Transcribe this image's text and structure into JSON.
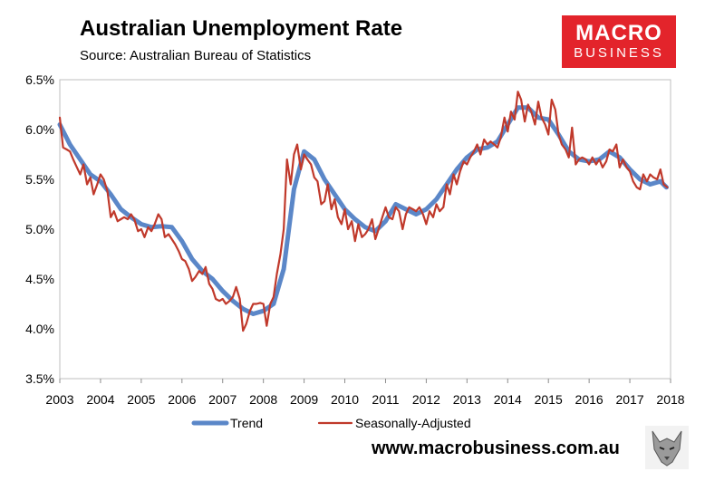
{
  "header": {
    "title": "Australian Unemployment Rate",
    "subtitle": "Source: Australian Bureau of Statistics"
  },
  "logo": {
    "line1": "MACRO",
    "line2": "BUSINESS",
    "color": "#e3242b"
  },
  "footer": {
    "website": "www.macrobusiness.com.au"
  },
  "chart_data": {
    "type": "line",
    "title": "Australian Unemployment Rate",
    "subtitle": "Source: Australian Bureau of Statistics",
    "xlabel": "",
    "ylabel": "",
    "xlim": [
      2003,
      2018
    ],
    "ylim": [
      3.5,
      6.5
    ],
    "x_ticks": [
      "2003",
      "2004",
      "2005",
      "2006",
      "2007",
      "2008",
      "2009",
      "2010",
      "2011",
      "2012",
      "2013",
      "2014",
      "2015",
      "2016",
      "2017",
      "2018"
    ],
    "y_ticks": [
      "3.5%",
      "4.0%",
      "4.5%",
      "5.0%",
      "5.5%",
      "6.0%",
      "6.5%"
    ],
    "grid": false,
    "legend": "bottom",
    "series": [
      {
        "name": "Trend",
        "color": "#5b87c8",
        "points": [
          [
            2003.0,
            6.05
          ],
          [
            2003.25,
            5.85
          ],
          [
            2003.5,
            5.7
          ],
          [
            2003.75,
            5.55
          ],
          [
            2004.0,
            5.48
          ],
          [
            2004.25,
            5.35
          ],
          [
            2004.5,
            5.2
          ],
          [
            2004.75,
            5.12
          ],
          [
            2005.0,
            5.05
          ],
          [
            2005.25,
            5.02
          ],
          [
            2005.5,
            5.03
          ],
          [
            2005.75,
            5.02
          ],
          [
            2006.0,
            4.88
          ],
          [
            2006.25,
            4.7
          ],
          [
            2006.5,
            4.58
          ],
          [
            2006.75,
            4.5
          ],
          [
            2007.0,
            4.38
          ],
          [
            2007.25,
            4.28
          ],
          [
            2007.5,
            4.2
          ],
          [
            2007.75,
            4.15
          ],
          [
            2008.0,
            4.18
          ],
          [
            2008.25,
            4.25
          ],
          [
            2008.5,
            4.6
          ],
          [
            2008.75,
            5.4
          ],
          [
            2009.0,
            5.78
          ],
          [
            2009.25,
            5.7
          ],
          [
            2009.5,
            5.5
          ],
          [
            2009.75,
            5.35
          ],
          [
            2010.0,
            5.2
          ],
          [
            2010.25,
            5.1
          ],
          [
            2010.5,
            5.02
          ],
          [
            2010.75,
            4.98
          ],
          [
            2011.0,
            5.08
          ],
          [
            2011.25,
            5.25
          ],
          [
            2011.5,
            5.2
          ],
          [
            2011.75,
            5.15
          ],
          [
            2012.0,
            5.2
          ],
          [
            2012.25,
            5.3
          ],
          [
            2012.5,
            5.45
          ],
          [
            2012.75,
            5.6
          ],
          [
            2013.0,
            5.72
          ],
          [
            2013.25,
            5.8
          ],
          [
            2013.5,
            5.82
          ],
          [
            2013.75,
            5.88
          ],
          [
            2014.0,
            6.05
          ],
          [
            2014.25,
            6.22
          ],
          [
            2014.5,
            6.22
          ],
          [
            2014.75,
            6.12
          ],
          [
            2015.0,
            6.1
          ],
          [
            2015.25,
            5.95
          ],
          [
            2015.5,
            5.78
          ],
          [
            2015.75,
            5.7
          ],
          [
            2016.0,
            5.68
          ],
          [
            2016.25,
            5.7
          ],
          [
            2016.5,
            5.78
          ],
          [
            2016.75,
            5.72
          ],
          [
            2017.0,
            5.6
          ],
          [
            2017.25,
            5.5
          ],
          [
            2017.5,
            5.45
          ],
          [
            2017.75,
            5.48
          ],
          [
            2017.9,
            5.42
          ]
        ]
      },
      {
        "name": "Seasonally-Adjusted",
        "color": "#c0392b",
        "points": [
          [
            2003.0,
            6.12
          ],
          [
            2003.08,
            5.82
          ],
          [
            2003.17,
            5.8
          ],
          [
            2003.25,
            5.78
          ],
          [
            2003.33,
            5.7
          ],
          [
            2003.42,
            5.62
          ],
          [
            2003.5,
            5.55
          ],
          [
            2003.58,
            5.65
          ],
          [
            2003.67,
            5.45
          ],
          [
            2003.75,
            5.52
          ],
          [
            2003.83,
            5.35
          ],
          [
            2003.92,
            5.45
          ],
          [
            2004.0,
            5.55
          ],
          [
            2004.08,
            5.5
          ],
          [
            2004.17,
            5.38
          ],
          [
            2004.25,
            5.12
          ],
          [
            2004.33,
            5.18
          ],
          [
            2004.42,
            5.08
          ],
          [
            2004.5,
            5.1
          ],
          [
            2004.58,
            5.12
          ],
          [
            2004.67,
            5.1
          ],
          [
            2004.75,
            5.15
          ],
          [
            2004.83,
            5.1
          ],
          [
            2004.92,
            4.98
          ],
          [
            2005.0,
            5.0
          ],
          [
            2005.08,
            4.92
          ],
          [
            2005.17,
            5.02
          ],
          [
            2005.25,
            4.98
          ],
          [
            2005.33,
            5.05
          ],
          [
            2005.42,
            5.15
          ],
          [
            2005.5,
            5.1
          ],
          [
            2005.58,
            4.92
          ],
          [
            2005.67,
            4.95
          ],
          [
            2005.75,
            4.9
          ],
          [
            2005.83,
            4.85
          ],
          [
            2005.92,
            4.78
          ],
          [
            2006.0,
            4.7
          ],
          [
            2006.08,
            4.68
          ],
          [
            2006.17,
            4.6
          ],
          [
            2006.25,
            4.48
          ],
          [
            2006.33,
            4.52
          ],
          [
            2006.42,
            4.58
          ],
          [
            2006.5,
            4.55
          ],
          [
            2006.58,
            4.62
          ],
          [
            2006.67,
            4.45
          ],
          [
            2006.75,
            4.4
          ],
          [
            2006.83,
            4.3
          ],
          [
            2006.92,
            4.28
          ],
          [
            2007.0,
            4.3
          ],
          [
            2007.08,
            4.25
          ],
          [
            2007.17,
            4.28
          ],
          [
            2007.25,
            4.32
          ],
          [
            2007.33,
            4.42
          ],
          [
            2007.42,
            4.3
          ],
          [
            2007.5,
            3.98
          ],
          [
            2007.58,
            4.05
          ],
          [
            2007.67,
            4.18
          ],
          [
            2007.75,
            4.25
          ],
          [
            2007.83,
            4.25
          ],
          [
            2007.92,
            4.26
          ],
          [
            2008.0,
            4.25
          ],
          [
            2008.08,
            4.03
          ],
          [
            2008.17,
            4.25
          ],
          [
            2008.25,
            4.32
          ],
          [
            2008.33,
            4.55
          ],
          [
            2008.42,
            4.75
          ],
          [
            2008.5,
            5.0
          ],
          [
            2008.58,
            5.7
          ],
          [
            2008.67,
            5.45
          ],
          [
            2008.75,
            5.75
          ],
          [
            2008.83,
            5.85
          ],
          [
            2008.92,
            5.6
          ],
          [
            2009.0,
            5.75
          ],
          [
            2009.08,
            5.7
          ],
          [
            2009.17,
            5.65
          ],
          [
            2009.25,
            5.52
          ],
          [
            2009.33,
            5.48
          ],
          [
            2009.42,
            5.25
          ],
          [
            2009.5,
            5.28
          ],
          [
            2009.58,
            5.45
          ],
          [
            2009.67,
            5.2
          ],
          [
            2009.75,
            5.3
          ],
          [
            2009.83,
            5.12
          ],
          [
            2009.92,
            5.05
          ],
          [
            2010.0,
            5.2
          ],
          [
            2010.08,
            5.0
          ],
          [
            2010.17,
            5.08
          ],
          [
            2010.25,
            4.88
          ],
          [
            2010.33,
            5.05
          ],
          [
            2010.42,
            4.92
          ],
          [
            2010.5,
            4.95
          ],
          [
            2010.58,
            5.0
          ],
          [
            2010.67,
            5.1
          ],
          [
            2010.75,
            4.9
          ],
          [
            2010.83,
            5.0
          ],
          [
            2010.92,
            5.12
          ],
          [
            2011.0,
            5.22
          ],
          [
            2011.08,
            5.12
          ],
          [
            2011.17,
            5.1
          ],
          [
            2011.25,
            5.22
          ],
          [
            2011.33,
            5.18
          ],
          [
            2011.42,
            5.0
          ],
          [
            2011.5,
            5.15
          ],
          [
            2011.58,
            5.22
          ],
          [
            2011.67,
            5.2
          ],
          [
            2011.75,
            5.18
          ],
          [
            2011.83,
            5.22
          ],
          [
            2011.92,
            5.15
          ],
          [
            2012.0,
            5.05
          ],
          [
            2012.08,
            5.18
          ],
          [
            2012.17,
            5.12
          ],
          [
            2012.25,
            5.25
          ],
          [
            2012.33,
            5.18
          ],
          [
            2012.42,
            5.22
          ],
          [
            2012.5,
            5.45
          ],
          [
            2012.58,
            5.35
          ],
          [
            2012.67,
            5.55
          ],
          [
            2012.75,
            5.45
          ],
          [
            2012.83,
            5.58
          ],
          [
            2012.92,
            5.68
          ],
          [
            2013.0,
            5.65
          ],
          [
            2013.08,
            5.72
          ],
          [
            2013.17,
            5.78
          ],
          [
            2013.25,
            5.85
          ],
          [
            2013.33,
            5.75
          ],
          [
            2013.42,
            5.9
          ],
          [
            2013.5,
            5.85
          ],
          [
            2013.58,
            5.88
          ],
          [
            2013.67,
            5.85
          ],
          [
            2013.75,
            5.82
          ],
          [
            2013.83,
            5.92
          ],
          [
            2013.92,
            6.12
          ],
          [
            2014.0,
            5.98
          ],
          [
            2014.08,
            6.18
          ],
          [
            2014.17,
            6.1
          ],
          [
            2014.25,
            6.38
          ],
          [
            2014.33,
            6.3
          ],
          [
            2014.42,
            6.08
          ],
          [
            2014.5,
            6.25
          ],
          [
            2014.58,
            6.18
          ],
          [
            2014.67,
            6.05
          ],
          [
            2014.75,
            6.28
          ],
          [
            2014.83,
            6.12
          ],
          [
            2014.92,
            6.05
          ],
          [
            2015.0,
            5.95
          ],
          [
            2015.08,
            6.3
          ],
          [
            2015.17,
            6.2
          ],
          [
            2015.25,
            5.95
          ],
          [
            2015.33,
            5.85
          ],
          [
            2015.42,
            5.8
          ],
          [
            2015.5,
            5.72
          ],
          [
            2015.58,
            6.02
          ],
          [
            2015.67,
            5.65
          ],
          [
            2015.75,
            5.7
          ],
          [
            2015.83,
            5.72
          ],
          [
            2015.92,
            5.7
          ],
          [
            2016.0,
            5.65
          ],
          [
            2016.08,
            5.72
          ],
          [
            2016.17,
            5.65
          ],
          [
            2016.25,
            5.7
          ],
          [
            2016.33,
            5.62
          ],
          [
            2016.42,
            5.68
          ],
          [
            2016.5,
            5.8
          ],
          [
            2016.58,
            5.78
          ],
          [
            2016.67,
            5.85
          ],
          [
            2016.75,
            5.62
          ],
          [
            2016.83,
            5.7
          ],
          [
            2016.92,
            5.62
          ],
          [
            2017.0,
            5.58
          ],
          [
            2017.08,
            5.48
          ],
          [
            2017.17,
            5.42
          ],
          [
            2017.25,
            5.4
          ],
          [
            2017.33,
            5.55
          ],
          [
            2017.42,
            5.48
          ],
          [
            2017.5,
            5.55
          ],
          [
            2017.58,
            5.52
          ],
          [
            2017.67,
            5.5
          ],
          [
            2017.75,
            5.6
          ],
          [
            2017.83,
            5.45
          ],
          [
            2017.92,
            5.42
          ]
        ]
      }
    ]
  }
}
